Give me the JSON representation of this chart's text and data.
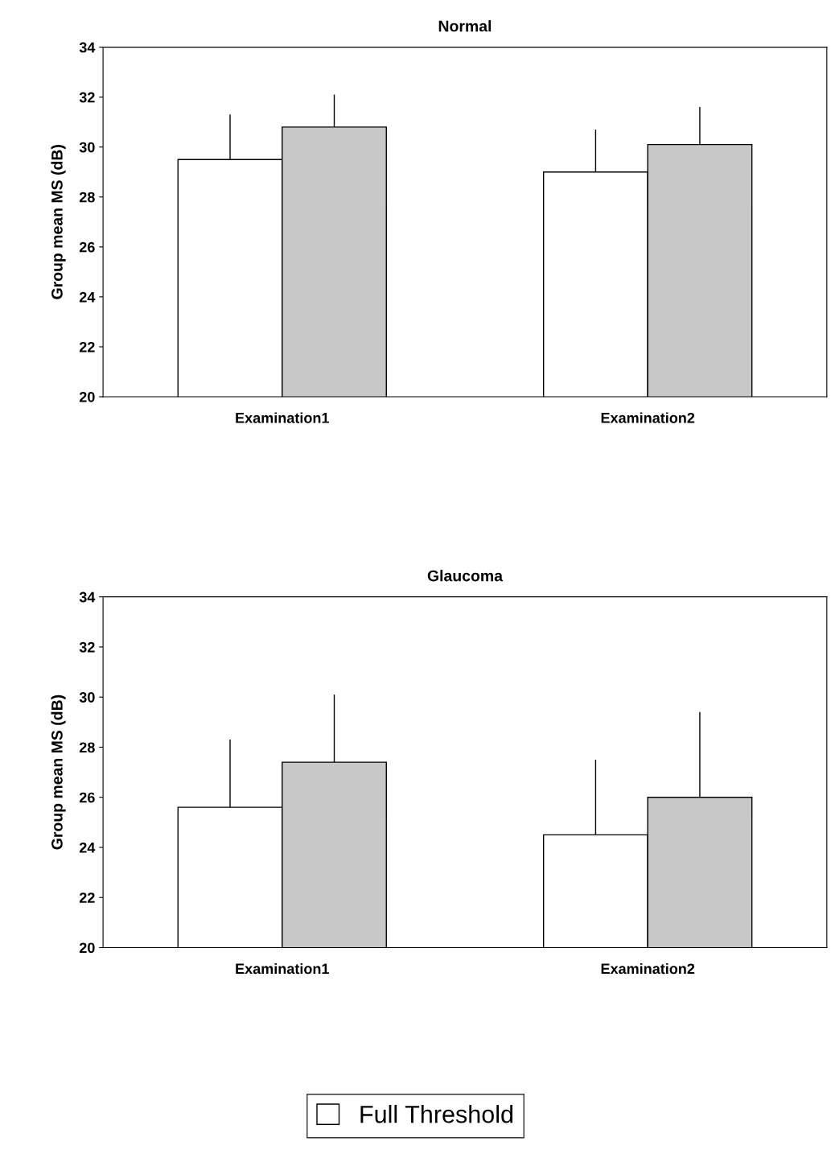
{
  "chart_data": [
    {
      "type": "bar",
      "title": "Normal",
      "ylabel": "Group mean MS (dB)",
      "categories": [
        "Examination1",
        "Examination2"
      ],
      "ylim": [
        20,
        34
      ],
      "yticks": [
        20,
        22,
        24,
        26,
        28,
        30,
        32,
        34
      ],
      "grid": false,
      "legend": "bottom",
      "series": [
        {
          "name": "Full Threshold",
          "color": "#ffffff",
          "values": [
            29.5,
            29.0
          ],
          "errors": [
            [
              29.5,
              31.3
            ],
            [
              29.0,
              30.7
            ]
          ]
        },
        {
          "color": "#c8c8c8",
          "values": [
            30.8,
            30.1
          ],
          "errors": [
            [
              30.8,
              32.1
            ],
            [
              30.1,
              31.6
            ]
          ]
        }
      ]
    },
    {
      "type": "bar",
      "title": "Glaucoma",
      "ylabel": "Group mean MS (dB)",
      "categories": [
        "Examination1",
        "Examination2"
      ],
      "ylim": [
        20,
        34
      ],
      "yticks": [
        20,
        22,
        24,
        26,
        28,
        30,
        32,
        34
      ],
      "grid": false,
      "series": [
        {
          "color": "#ffffff",
          "values": [
            25.6,
            24.5
          ],
          "errors": [
            [
              25.6,
              28.3
            ],
            [
              24.5,
              27.5
            ]
          ]
        },
        {
          "color": "#c8c8c8",
          "values": [
            27.4,
            26.0
          ],
          "errors": [
            [
              27.4,
              30.1
            ],
            [
              26.0,
              29.4
            ]
          ]
        }
      ]
    }
  ]
}
